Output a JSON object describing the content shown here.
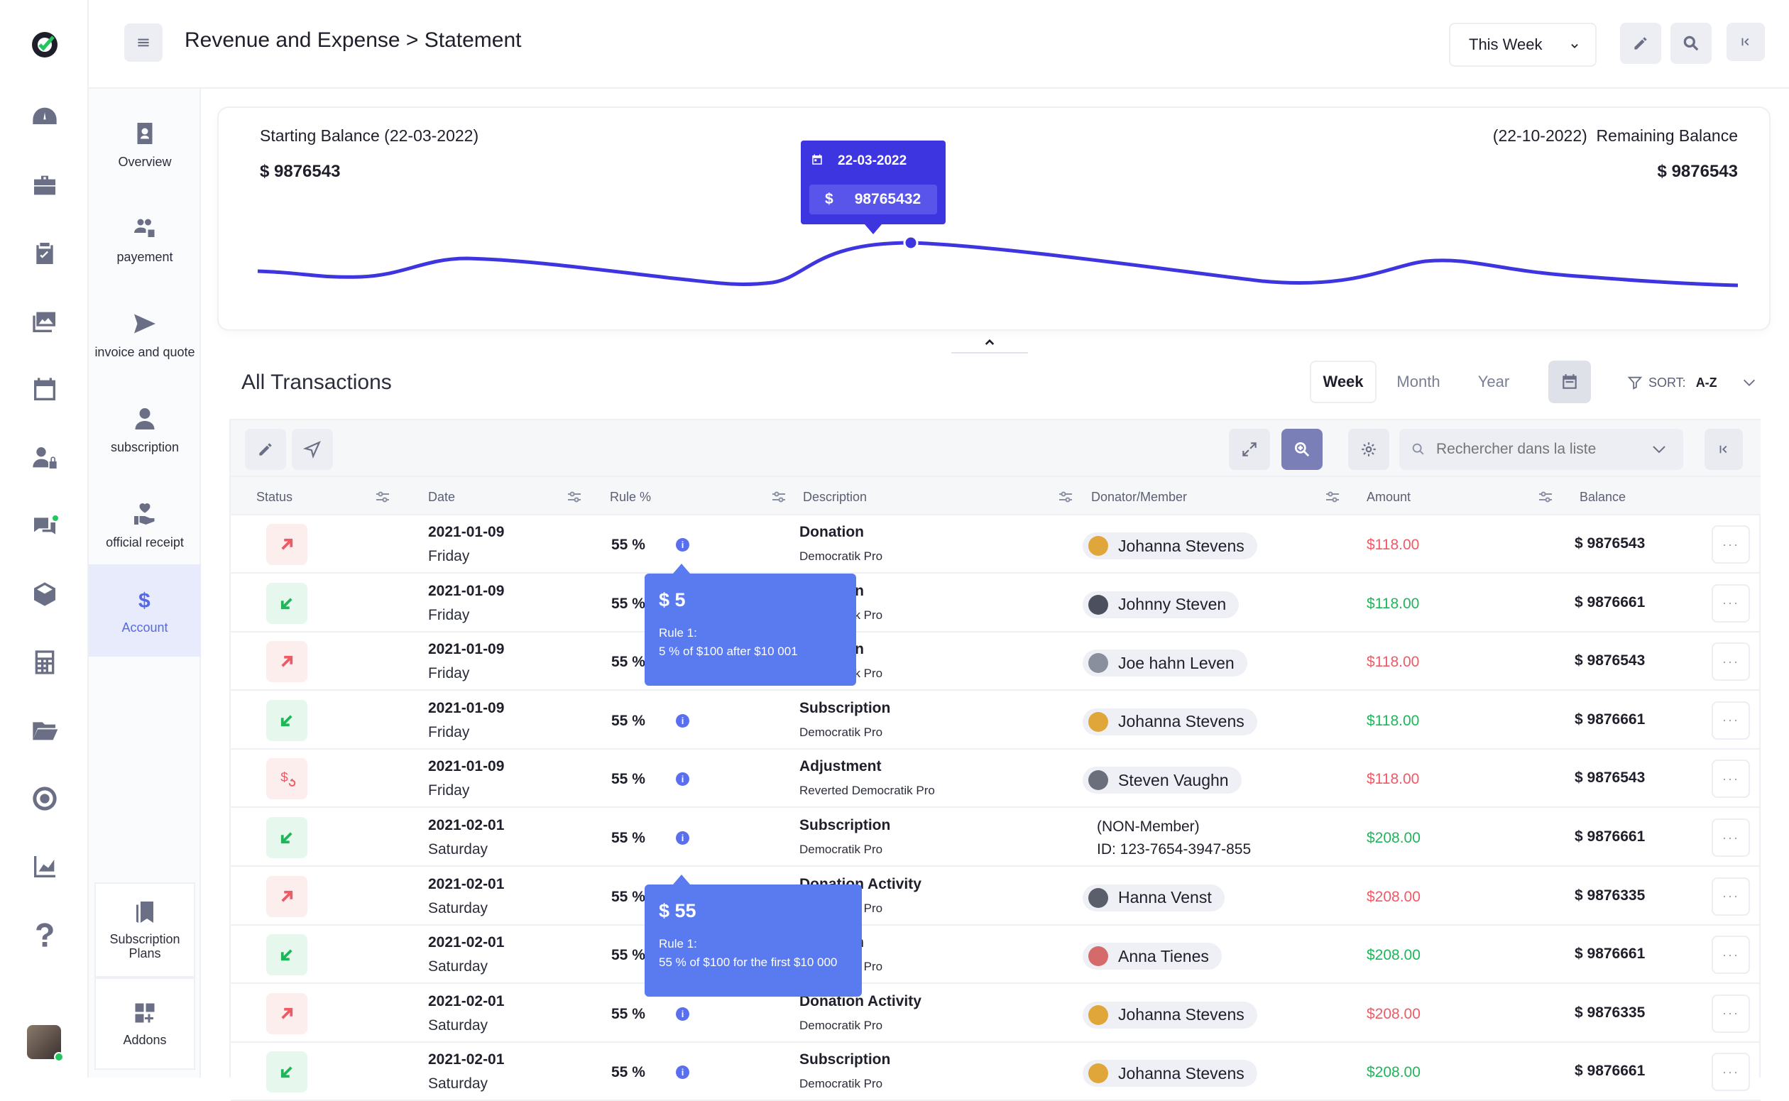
{
  "header": {
    "breadcrumb": "Revenue and Expense > Statement",
    "period_select": "This Week"
  },
  "rail_icons": [
    "logo-icon",
    "dashboard-icon",
    "briefcase-icon",
    "clipboard-check-icon",
    "gallery-icon",
    "calendar-icon",
    "user-lock-icon",
    "chat-icon",
    "cube-icon",
    "calculator-icon",
    "folder-icon",
    "target-icon",
    "chart-icon",
    "help-icon"
  ],
  "subnav": {
    "items": [
      {
        "label": "Overview",
        "icon": "contact-card-icon"
      },
      {
        "label": "payement",
        "icon": "users-gear-icon"
      },
      {
        "label": "invoice and quote",
        "icon": "paper-plane-icon"
      },
      {
        "label": "subscription",
        "icon": "user-icon"
      },
      {
        "label": "official receipt",
        "icon": "hand-heart-icon"
      },
      {
        "label": "Account",
        "icon": "dollar-icon"
      }
    ],
    "bottom": [
      {
        "label": "Subscription Plans",
        "icon": "bookmark-icon"
      },
      {
        "label": "Addons",
        "icon": "addons-icon"
      }
    ]
  },
  "balance": {
    "start_label": "Starting Balance (22-03-2022)",
    "start_value": "$ 9876543",
    "remaining_label": "(22-10-2022)  Remaining Balance",
    "remaining_value": "$ 9876543",
    "tooltip_date": "22-03-2022",
    "tooltip_dollar": "$",
    "tooltip_value": "98765432"
  },
  "transactions": {
    "title": "All Transactions",
    "tabs": [
      "Week",
      "Month",
      "Year"
    ],
    "active_tab": "Week",
    "sort_label": "SORT:",
    "sort_value": "A-Z",
    "search_placeholder": "Rechercher dans la liste",
    "columns": [
      "Status",
      "Date",
      "Rule %",
      "Description",
      "Donator/Member",
      "Amount",
      "Balance"
    ],
    "rows": [
      {
        "status": "out",
        "date": "2021-01-09",
        "day": "Friday",
        "rule": "55 %",
        "desc": "Donation",
        "sub": "Democratik Pro",
        "member": "Johanna Stevens",
        "avatar": "#e0a63a",
        "amount": "$118.00",
        "balance": "$ 9876543"
      },
      {
        "status": "in",
        "date": "2021-01-09",
        "day": "Friday",
        "rule": "55 %",
        "desc": "Donation",
        "sub": "Democratik Pro",
        "member": "Johnny Steven",
        "avatar": "#4b4f5e",
        "amount": "$118.00",
        "balance": "$ 9876661"
      },
      {
        "status": "out",
        "date": "2021-01-09",
        "day": "Friday",
        "rule": "55 %",
        "desc": "Donation",
        "sub": "Democratik Pro",
        "member": "Joe hahn Leven",
        "avatar": "#8a8f9d",
        "amount": "$118.00",
        "balance": "$ 9876543"
      },
      {
        "status": "in",
        "date": "2021-01-09",
        "day": "Friday",
        "rule": "55 %",
        "desc": "Subscription",
        "sub": "Democratik Pro",
        "member": "Johanna Stevens",
        "avatar": "#e0a63a",
        "amount": "$118.00",
        "balance": "$ 9876661"
      },
      {
        "status": "adj",
        "date": "2021-01-09",
        "day": "Friday",
        "rule": "55 %",
        "desc": "Adjustment",
        "sub": "Reverted Democratik Pro",
        "member": "Steven Vaughn",
        "avatar": "#6b6f7c",
        "amount": "$118.00",
        "balance": "$ 9876543"
      },
      {
        "status": "in",
        "date": "2021-02-01",
        "day": "Saturday",
        "rule": "55 %",
        "desc": "Subscription",
        "sub": "Democratik Pro",
        "member": "",
        "nonmember1": "(NON-Member)",
        "nonmember2": "ID: 123-7654-3947-855",
        "amount": "$208.00",
        "balance": "$ 9876661"
      },
      {
        "status": "out",
        "date": "2021-02-01",
        "day": "Saturday",
        "rule": "55 %",
        "desc": "Donation Activity",
        "sub": "Democratik Pro",
        "member": "Hanna Venst",
        "avatar": "#5b5f6c",
        "amount": "$208.00",
        "balance": "$ 9876335"
      },
      {
        "status": "in",
        "date": "2021-02-01",
        "day": "Saturday",
        "rule": "55 %",
        "desc": "Donation",
        "sub": "Democratik Pro",
        "member": "Anna Tienes",
        "avatar": "#d46a6a",
        "amount": "$208.00",
        "balance": "$ 9876661"
      },
      {
        "status": "out",
        "date": "2021-02-01",
        "day": "Saturday",
        "rule": "55 %",
        "desc": "Donation Activity",
        "sub": "Democratik Pro",
        "member": "Johanna Stevens",
        "avatar": "#e0a63a",
        "amount": "$208.00",
        "balance": "$ 9876335"
      },
      {
        "status": "in",
        "date": "2021-02-01",
        "day": "Saturday",
        "rule": "55 %",
        "desc": "Subscription",
        "sub": "Democratik Pro",
        "member": "Johanna Stevens",
        "avatar": "#e0a63a",
        "amount": "$208.00",
        "balance": "$ 9876661"
      }
    ],
    "tooltips": [
      {
        "amount": "$ 5",
        "rule_title": "Rule 1:",
        "rule_text": "5 % of $100 after $10 001"
      },
      {
        "amount": "$ 55",
        "rule_title": "Rule 1:",
        "rule_text": "55 % of $100 for the first $10 000"
      }
    ]
  },
  "colors": {
    "accent": "#3d35e0",
    "tooltip": "#5a7af0",
    "out": "#ee5a66",
    "in": "#1fb65a"
  }
}
